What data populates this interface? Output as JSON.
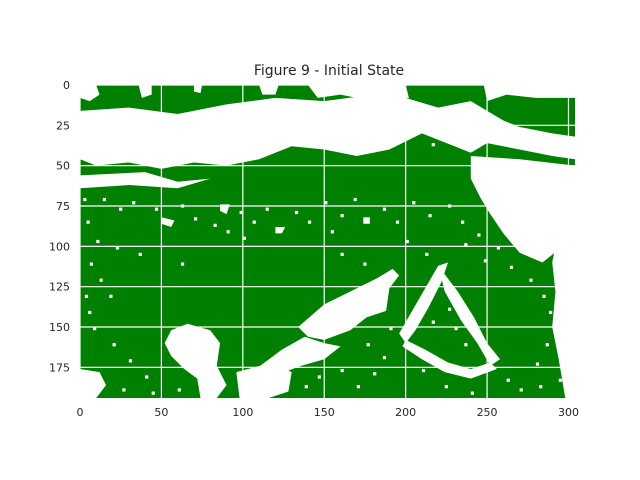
{
  "chart_data": {
    "type": "heatmap",
    "title": "Figure 9 - Initial State",
    "xlabel": "",
    "ylabel": "",
    "grid": true,
    "xlim": [
      0,
      304
    ],
    "ylim": [
      194,
      0
    ],
    "x_ticks": [
      0,
      50,
      100,
      150,
      200,
      250,
      300
    ],
    "y_ticks": [
      0,
      25,
      50,
      75,
      100,
      125,
      150,
      175
    ],
    "colormap": {
      "0": "#ffffff",
      "1": "#008000"
    },
    "colors": {
      "filled": "#008000",
      "empty": "#ffffff",
      "grid": "#ffffff",
      "text": "#262626"
    },
    "regions_empty": [
      {
        "name": "top-white-band",
        "polygon": [
          [
            0,
            16
          ],
          [
            30,
            14
          ],
          [
            60,
            18
          ],
          [
            90,
            12
          ],
          [
            120,
            8
          ],
          [
            150,
            10
          ],
          [
            180,
            6
          ],
          [
            200,
            8
          ],
          [
            220,
            14
          ],
          [
            240,
            10
          ],
          [
            250,
            16
          ],
          [
            260,
            22
          ],
          [
            270,
            26
          ],
          [
            290,
            30
          ],
          [
            304,
            32
          ],
          [
            304,
            46
          ],
          [
            290,
            44
          ],
          [
            270,
            40
          ],
          [
            250,
            36
          ],
          [
            240,
            42
          ],
          [
            230,
            38
          ],
          [
            210,
            30
          ],
          [
            190,
            40
          ],
          [
            170,
            44
          ],
          [
            150,
            40
          ],
          [
            130,
            38
          ],
          [
            110,
            46
          ],
          [
            90,
            50
          ],
          [
            70,
            48
          ],
          [
            50,
            52
          ],
          [
            30,
            48
          ],
          [
            10,
            50
          ],
          [
            0,
            46
          ]
        ]
      },
      {
        "name": "upper-left-white",
        "polygon": [
          [
            0,
            0
          ],
          [
            10,
            0
          ],
          [
            12,
            6
          ],
          [
            6,
            10
          ],
          [
            0,
            8
          ]
        ]
      },
      {
        "name": "top-gap-1",
        "polygon": [
          [
            36,
            0
          ],
          [
            44,
            0
          ],
          [
            44,
            6
          ],
          [
            38,
            8
          ]
        ]
      },
      {
        "name": "top-gap-2",
        "polygon": [
          [
            70,
            0
          ],
          [
            75,
            0
          ],
          [
            74,
            5
          ],
          [
            70,
            4
          ]
        ]
      },
      {
        "name": "top-gap-3",
        "polygon": [
          [
            110,
            0
          ],
          [
            122,
            0
          ],
          [
            120,
            6
          ],
          [
            112,
            6
          ]
        ]
      },
      {
        "name": "top-center-white",
        "polygon": [
          [
            140,
            0
          ],
          [
            200,
            0
          ],
          [
            202,
            8
          ],
          [
            180,
            10
          ],
          [
            160,
            6
          ],
          [
            146,
            8
          ]
        ]
      },
      {
        "name": "top-right-white",
        "polygon": [
          [
            248,
            0
          ],
          [
            304,
            0
          ],
          [
            304,
            8
          ],
          [
            280,
            8
          ],
          [
            262,
            6
          ],
          [
            250,
            10
          ]
        ]
      },
      {
        "name": "left-band-white",
        "polygon": [
          [
            0,
            56
          ],
          [
            40,
            54
          ],
          [
            60,
            60
          ],
          [
            80,
            58
          ],
          [
            60,
            64
          ],
          [
            30,
            62
          ],
          [
            0,
            64
          ]
        ]
      },
      {
        "name": "right-slope-white",
        "polygon": [
          [
            240,
            44
          ],
          [
            270,
            46
          ],
          [
            304,
            50
          ],
          [
            304,
            98
          ],
          [
            294,
            102
          ],
          [
            284,
            110
          ],
          [
            270,
            104
          ],
          [
            260,
            92
          ],
          [
            252,
            80
          ],
          [
            246,
            70
          ],
          [
            240,
            58
          ]
        ]
      },
      {
        "name": "right-edge-white",
        "polygon": [
          [
            292,
            100
          ],
          [
            304,
            98
          ],
          [
            304,
            194
          ],
          [
            298,
            194
          ],
          [
            294,
            170
          ],
          [
            290,
            150
          ],
          [
            292,
            128
          ],
          [
            290,
            110
          ]
        ]
      },
      {
        "name": "bottom-left-white",
        "polygon": [
          [
            0,
            176
          ],
          [
            12,
            178
          ],
          [
            16,
            186
          ],
          [
            10,
            194
          ],
          [
            0,
            194
          ]
        ]
      },
      {
        "name": "lower-left-blob",
        "polygon": [
          [
            56,
            152
          ],
          [
            66,
            148
          ],
          [
            80,
            152
          ],
          [
            86,
            160
          ],
          [
            84,
            174
          ],
          [
            90,
            186
          ],
          [
            84,
            194
          ],
          [
            74,
            194
          ],
          [
            72,
            182
          ],
          [
            64,
            176
          ],
          [
            56,
            168
          ],
          [
            52,
            160
          ]
        ]
      },
      {
        "name": "bottom-center-white",
        "polygon": [
          [
            96,
            178
          ],
          [
            118,
            172
          ],
          [
            130,
            178
          ],
          [
            128,
            190
          ],
          [
            116,
            194
          ],
          [
            98,
            194
          ]
        ]
      },
      {
        "name": "diagonal-feature-main",
        "polygon": [
          [
            134,
            150
          ],
          [
            150,
            136
          ],
          [
            166,
            128
          ],
          [
            182,
            120
          ],
          [
            192,
            114
          ],
          [
            196,
            118
          ],
          [
            190,
            126
          ],
          [
            188,
            140
          ],
          [
            176,
            144
          ],
          [
            166,
            152
          ],
          [
            150,
            158
          ],
          [
            140,
            156
          ]
        ]
      },
      {
        "name": "diagonal-feature-lower",
        "polygon": [
          [
            108,
            176
          ],
          [
            124,
            164
          ],
          [
            138,
            156
          ],
          [
            150,
            160
          ],
          [
            160,
            162
          ],
          [
            150,
            170
          ],
          [
            136,
            174
          ],
          [
            120,
            180
          ],
          [
            110,
            180
          ]
        ]
      },
      {
        "name": "triangle-feature-left-arm",
        "polygon": [
          [
            196,
            154
          ],
          [
            204,
            140
          ],
          [
            212,
            126
          ],
          [
            220,
            112
          ],
          [
            226,
            110
          ],
          [
            222,
            122
          ],
          [
            214,
            138
          ],
          [
            206,
            152
          ],
          [
            200,
            160
          ]
        ]
      },
      {
        "name": "triangle-feature-right-arm",
        "polygon": [
          [
            220,
            112
          ],
          [
            232,
            128
          ],
          [
            242,
            144
          ],
          [
            250,
            160
          ],
          [
            258,
            170
          ],
          [
            252,
            174
          ],
          [
            244,
            160
          ],
          [
            234,
            146
          ],
          [
            224,
            128
          ]
        ]
      },
      {
        "name": "triangle-feature-base",
        "polygon": [
          [
            200,
            158
          ],
          [
            212,
            164
          ],
          [
            226,
            172
          ],
          [
            240,
            176
          ],
          [
            252,
            172
          ],
          [
            256,
            176
          ],
          [
            240,
            182
          ],
          [
            224,
            178
          ],
          [
            210,
            170
          ],
          [
            198,
            162
          ]
        ]
      },
      {
        "name": "mid-left-speck-1",
        "polygon": [
          [
            50,
            82
          ],
          [
            58,
            84
          ],
          [
            56,
            88
          ],
          [
            50,
            86
          ]
        ]
      },
      {
        "name": "mid-left-speck-2",
        "polygon": [
          [
            86,
            74
          ],
          [
            92,
            74
          ],
          [
            90,
            80
          ],
          [
            86,
            78
          ]
        ]
      },
      {
        "name": "mid-speck-3",
        "polygon": [
          [
            174,
            82
          ],
          [
            178,
            82
          ],
          [
            178,
            86
          ],
          [
            174,
            86
          ]
        ]
      },
      {
        "name": "mid-speck-4",
        "polygon": [
          [
            120,
            88
          ],
          [
            126,
            88
          ],
          [
            124,
            92
          ],
          [
            120,
            92
          ]
        ]
      }
    ],
    "scatter_empty_points": [
      [
        18,
        30
      ],
      [
        22,
        36
      ],
      [
        27,
        40
      ],
      [
        44,
        24
      ],
      [
        52,
        34
      ],
      [
        58,
        22
      ],
      [
        66,
        40
      ],
      [
        78,
        30
      ],
      [
        84,
        38
      ],
      [
        96,
        26
      ],
      [
        104,
        34
      ],
      [
        112,
        28
      ],
      [
        128,
        24
      ],
      [
        136,
        30
      ],
      [
        142,
        22
      ],
      [
        156,
        30
      ],
      [
        168,
        24
      ],
      [
        176,
        34
      ],
      [
        186,
        22
      ],
      [
        196,
        30
      ],
      [
        208,
        24
      ],
      [
        216,
        36
      ],
      [
        226,
        28
      ],
      [
        232,
        22
      ],
      [
        244,
        30
      ],
      [
        258,
        30
      ],
      [
        266,
        34
      ],
      [
        276,
        30
      ],
      [
        284,
        36
      ],
      [
        298,
        34
      ],
      [
        14,
        70
      ],
      [
        24,
        76
      ],
      [
        32,
        72
      ],
      [
        46,
        76
      ],
      [
        62,
        74
      ],
      [
        70,
        82
      ],
      [
        98,
        78
      ],
      [
        106,
        84
      ],
      [
        114,
        76
      ],
      [
        132,
        78
      ],
      [
        140,
        84
      ],
      [
        150,
        72
      ],
      [
        160,
        80
      ],
      [
        168,
        70
      ],
      [
        186,
        76
      ],
      [
        194,
        84
      ],
      [
        204,
        72
      ],
      [
        214,
        80
      ],
      [
        226,
        74
      ],
      [
        234,
        84
      ],
      [
        244,
        92
      ],
      [
        256,
        100
      ],
      [
        264,
        112
      ],
      [
        276,
        120
      ],
      [
        284,
        130
      ],
      [
        288,
        140
      ],
      [
        286,
        160
      ],
      [
        280,
        172
      ],
      [
        12,
        120
      ],
      [
        18,
        130
      ],
      [
        8,
        150
      ],
      [
        20,
        160
      ],
      [
        30,
        170
      ],
      [
        40,
        180
      ],
      [
        44,
        190
      ],
      [
        26,
        188
      ],
      [
        60,
        188
      ],
      [
        138,
        186
      ],
      [
        146,
        180
      ],
      [
        160,
        176
      ],
      [
        170,
        186
      ],
      [
        180,
        178
      ],
      [
        186,
        168
      ],
      [
        176,
        160
      ],
      [
        190,
        150
      ],
      [
        230,
        150
      ],
      [
        236,
        160
      ],
      [
        216,
        146
      ],
      [
        226,
        138
      ],
      [
        210,
        176
      ],
      [
        224,
        186
      ],
      [
        240,
        190
      ],
      [
        262,
        182
      ],
      [
        270,
        188
      ],
      [
        282,
        186
      ],
      [
        294,
        182
      ],
      [
        82,
        86
      ],
      [
        90,
        90
      ],
      [
        100,
        94
      ],
      [
        154,
        90
      ],
      [
        200,
        96
      ],
      [
        212,
        104
      ],
      [
        236,
        98
      ],
      [
        248,
        108
      ],
      [
        160,
        104
      ],
      [
        174,
        110
      ],
      [
        62,
        110
      ],
      [
        36,
        104
      ],
      [
        22,
        100
      ],
      [
        10,
        96
      ],
      [
        4,
        84
      ],
      [
        2,
        70
      ],
      [
        6,
        110
      ],
      [
        3,
        130
      ],
      [
        5,
        140
      ]
    ]
  }
}
